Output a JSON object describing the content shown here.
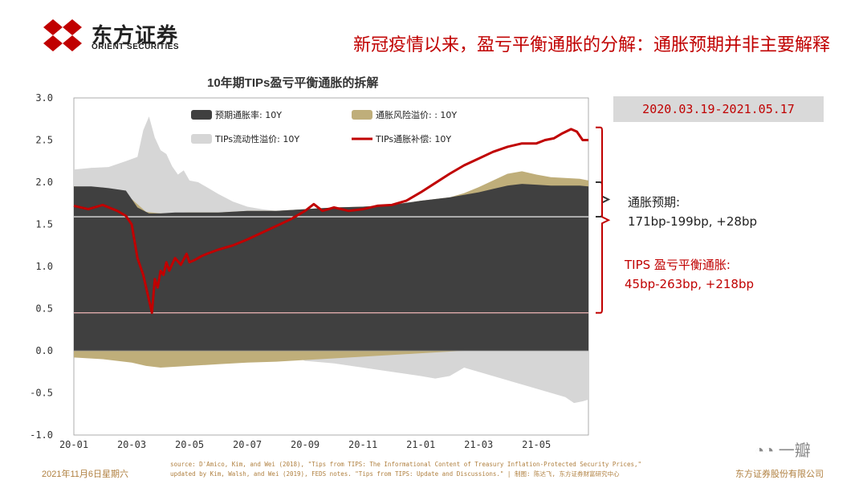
{
  "header": {
    "logo_cn": "东方证券",
    "logo_en": "ORIENT SECURITIES",
    "slide_title": "新冠疫情以来，盈亏平衡通胀的分解：通胀预期并非主要解释"
  },
  "colors": {
    "red": "#c00000",
    "dark": "#404040",
    "tan": "#bfae7a",
    "light": "#d6d6d6",
    "footer": "#b08040"
  },
  "annotations": {
    "date_range": "2020.03.19-2021.05.17",
    "expect_label": "通胀预期:",
    "expect_value": "171bp-199bp, +28bp",
    "tips_label": "TIPS 盈亏平衡通胀:",
    "tips_value": "45bp-263bp, +218bp"
  },
  "footer": {
    "date": "2021年11月6日星期六",
    "source_line1": "source: D'Amico, Kim, and Wei (2018), \"Tips from TIPS: The Informational Content of Treasury Inflation-Protected Security Prices,\"",
    "source_line2": "updated by Kim, Walsh, and Wei (2019), FEDS notes. \"Tips from TIPS: Update and Discussions.\" | 制图: 陈达飞, 东方证券财富研究中心",
    "company": "东方证券股份有限公司"
  },
  "watermark": "一瓣",
  "chart_data": {
    "type": "area",
    "title": "10年期TIPs盈亏平衡通胀的拆解",
    "xlabel": "",
    "ylabel": "",
    "ylim": [
      -1.0,
      3.0
    ],
    "yticks": [
      "3.0",
      "2.5",
      "2.0",
      "1.5",
      "1.0",
      "0.5",
      "0.0",
      "-0.5",
      "-1.0"
    ],
    "ytick_values": [
      3.0,
      2.5,
      2.0,
      1.5,
      1.0,
      0.5,
      0.0,
      -0.5,
      -1.0
    ],
    "xticks": [
      "20-01",
      "20-03",
      "20-05",
      "20-07",
      "20-09",
      "20-11",
      "21-01",
      "21-03",
      "21-05"
    ],
    "x_months": [
      0,
      2,
      4,
      6,
      8,
      10,
      12,
      14,
      16
    ],
    "x_range_months": [
      0,
      17.8
    ],
    "legend": [
      {
        "name": "预期通胀率: 10Y",
        "style": "dark"
      },
      {
        "name": "通胀风险溢价: : 10Y",
        "style": "tan"
      },
      {
        "name": "TIPs流动性溢价: 10Y",
        "style": "light"
      },
      {
        "name": "TIPs通胀补偿: 10Y",
        "style": "red-line"
      }
    ],
    "reference_lines": [
      {
        "value": 1.59,
        "color": "#ffffff"
      },
      {
        "value": 0.45,
        "color": "#f2b8b8"
      }
    ],
    "series": [
      {
        "name": "预期通胀率: 10Y",
        "x": [
          0,
          0.6,
          1.2,
          1.8,
          2.2,
          2.6,
          3.0,
          3.5,
          4.0,
          5.0,
          6.0,
          7.0,
          8.0,
          9.0,
          10.0,
          11.0,
          12.0,
          12.5,
          13.0,
          13.5,
          14.0,
          14.5,
          15.0,
          15.5,
          16.0,
          16.5,
          17.0,
          17.5,
          17.8
        ],
        "values": [
          1.95,
          1.95,
          1.93,
          1.9,
          1.7,
          1.63,
          1.63,
          1.64,
          1.64,
          1.64,
          1.66,
          1.66,
          1.68,
          1.7,
          1.71,
          1.73,
          1.78,
          1.8,
          1.82,
          1.85,
          1.88,
          1.92,
          1.96,
          1.98,
          1.97,
          1.96,
          1.96,
          1.96,
          1.95
        ]
      },
      {
        "name": "通胀风险溢价: : 10Y",
        "x": [
          0,
          1.0,
          2.0,
          2.5,
          3.0,
          4.0,
          5.0,
          6.0,
          7.0,
          8.0,
          9.0,
          10.0,
          11.0,
          12.0,
          13.0,
          13.5,
          14.0,
          14.5,
          15.0,
          15.5,
          16.0,
          16.5,
          17.0,
          17.5,
          17.8
        ],
        "values": [
          -0.08,
          -0.1,
          -0.14,
          -0.18,
          -0.2,
          -0.18,
          -0.16,
          -0.14,
          -0.13,
          -0.11,
          -0.09,
          -0.07,
          -0.05,
          -0.03,
          -0.01,
          0.02,
          0.06,
          0.1,
          0.14,
          0.15,
          0.12,
          0.1,
          0.09,
          0.08,
          0.07
        ]
      },
      {
        "name": "TIPs流动性溢价: 10Y",
        "x": [
          0,
          0.6,
          1.2,
          1.8,
          2.2,
          2.4,
          2.6,
          2.8,
          3.0,
          3.2,
          3.4,
          3.6,
          3.8,
          4.0,
          4.3,
          4.6,
          5.0,
          5.5,
          6.0,
          6.5,
          7.0,
          7.5,
          8.0,
          9.0,
          10.0,
          11.0,
          12.0,
          12.5,
          13.0,
          13.5,
          14.0,
          14.5,
          15.0,
          15.5,
          16.0,
          16.5,
          17.0,
          17.3,
          17.6,
          17.8
        ],
        "values": [
          0.2,
          0.22,
          0.25,
          0.35,
          0.6,
          0.95,
          1.15,
          0.9,
          0.75,
          0.7,
          0.55,
          0.45,
          0.5,
          0.38,
          0.36,
          0.3,
          0.22,
          0.12,
          0.05,
          0.02,
          0.0,
          -0.05,
          -0.12,
          -0.15,
          -0.2,
          -0.25,
          -0.3,
          -0.33,
          -0.3,
          -0.2,
          -0.25,
          -0.3,
          -0.35,
          -0.4,
          -0.45,
          -0.5,
          -0.55,
          -0.62,
          -0.6,
          -0.58
        ]
      },
      {
        "name": "TIPs通胀补偿: 10Y",
        "x": [
          0,
          0.5,
          1.0,
          1.5,
          1.8,
          2.0,
          2.2,
          2.4,
          2.6,
          2.7,
          2.8,
          2.9,
          3.0,
          3.1,
          3.2,
          3.3,
          3.5,
          3.7,
          3.9,
          4.0,
          4.2,
          4.4,
          4.6,
          5.0,
          5.5,
          6.0,
          6.5,
          7.0,
          7.5,
          8.0,
          8.3,
          8.6,
          9.0,
          9.5,
          10.0,
          10.5,
          11.0,
          11.5,
          12.0,
          12.5,
          13.0,
          13.5,
          14.0,
          14.5,
          15.0,
          15.5,
          16.0,
          16.3,
          16.6,
          16.9,
          17.2,
          17.4,
          17.6,
          17.8
        ],
        "values": [
          1.72,
          1.68,
          1.73,
          1.66,
          1.6,
          1.5,
          1.1,
          0.9,
          0.6,
          0.45,
          0.85,
          0.75,
          0.95,
          0.9,
          1.05,
          0.95,
          1.1,
          1.02,
          1.15,
          1.05,
          1.08,
          1.12,
          1.15,
          1.2,
          1.25,
          1.32,
          1.4,
          1.48,
          1.56,
          1.66,
          1.74,
          1.66,
          1.7,
          1.66,
          1.68,
          1.72,
          1.73,
          1.78,
          1.88,
          1.99,
          2.1,
          2.2,
          2.28,
          2.36,
          2.42,
          2.46,
          2.46,
          2.5,
          2.52,
          2.58,
          2.63,
          2.6,
          2.5,
          2.5
        ]
      }
    ]
  }
}
